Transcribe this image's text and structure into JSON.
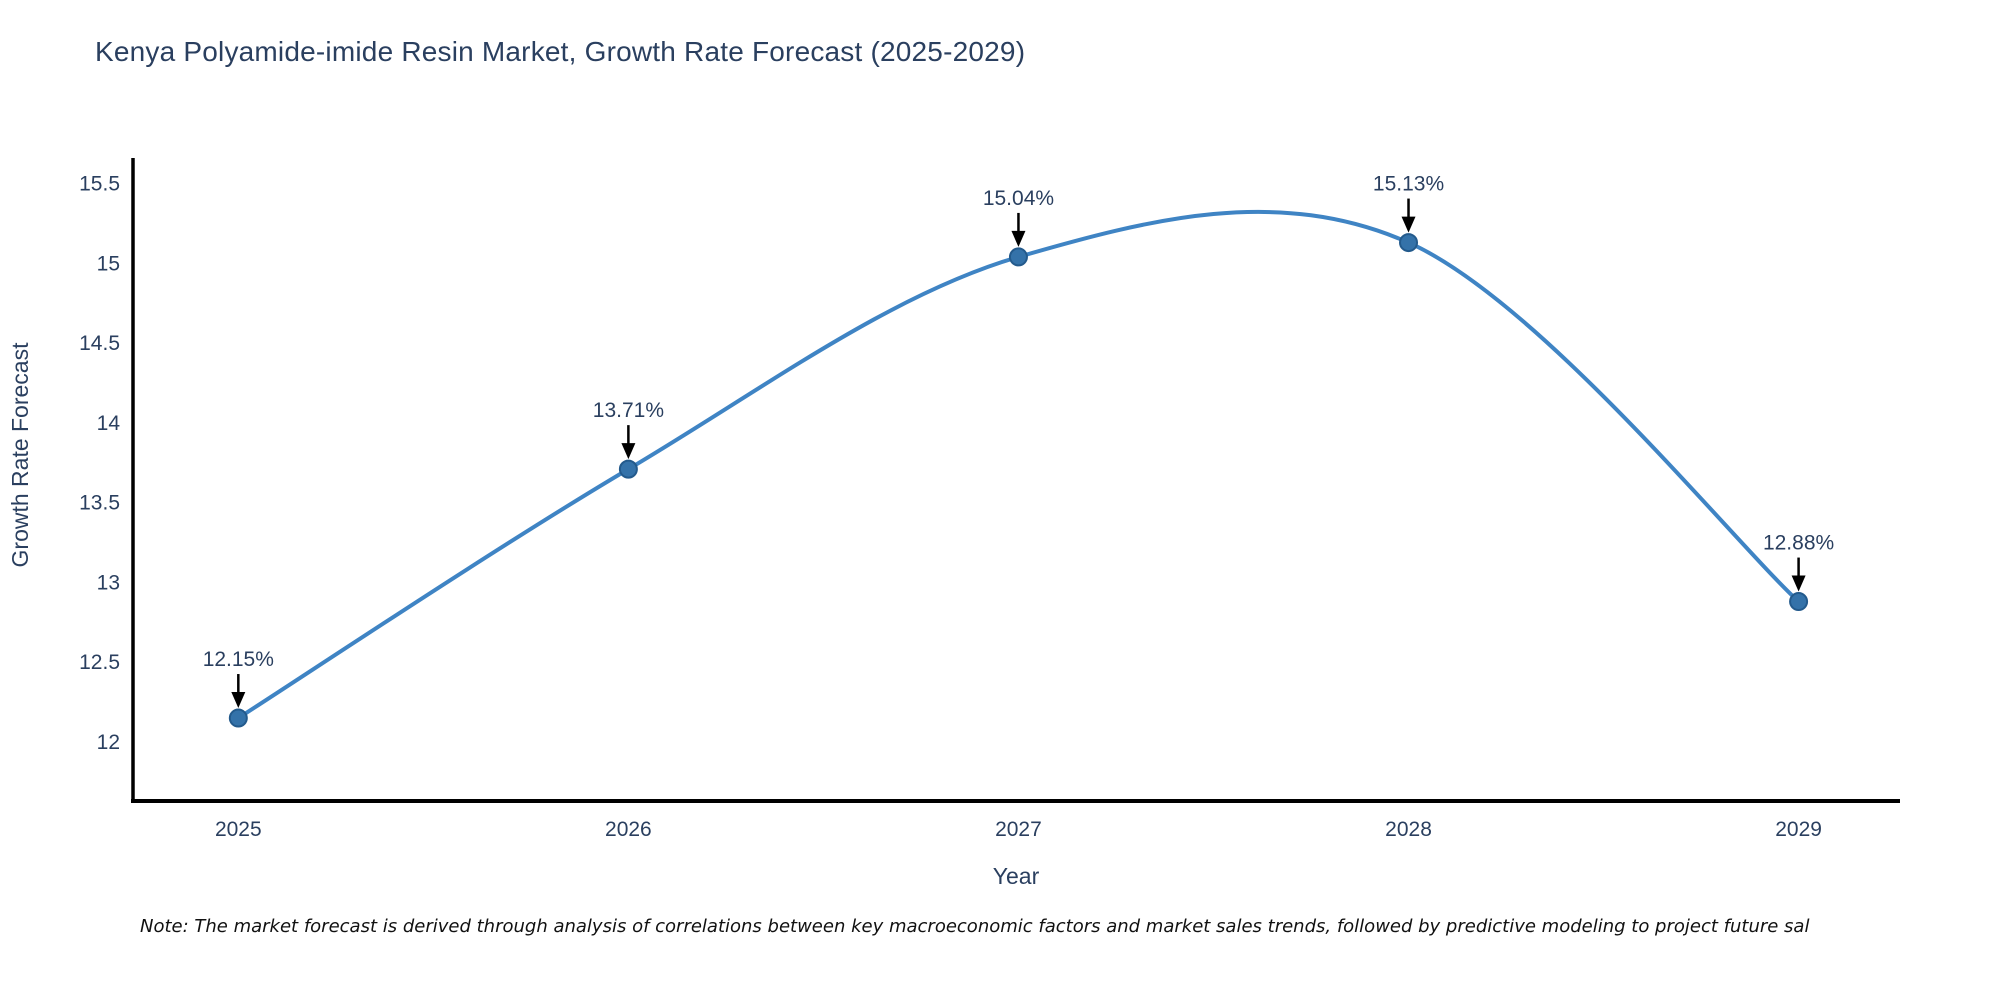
{
  "title": "Kenya Polyamide-imide Resin Market, Growth Rate Forecast (2025-2029)",
  "note": "Note: The market forecast is derived through analysis of correlations between key macroeconomic factors and market sales trends, followed by predictive modeling to project future sal",
  "chart_data": {
    "type": "line",
    "curve": "spline",
    "title": "Kenya Polyamide-imide Resin Market, Growth Rate Forecast (2025-2029)",
    "xlabel": "Year",
    "ylabel": "Growth Rate Forecast",
    "x": [
      2025,
      2026,
      2027,
      2028,
      2029
    ],
    "series": [
      {
        "name": "Growth Rate Forecast",
        "values": [
          12.15,
          13.71,
          15.04,
          15.13,
          12.88
        ]
      }
    ],
    "point_labels": [
      "12.15%",
      "13.71%",
      "15.04%",
      "15.13%",
      "12.88%"
    ],
    "x_ticks": [
      "2025",
      "2026",
      "2027",
      "2028",
      "2029"
    ],
    "y_ticks": [
      12,
      12.5,
      13,
      13.5,
      14,
      14.5,
      15,
      15.5
    ],
    "xlim": [
      2024.73,
      2029.26
    ],
    "ylim": [
      11.63,
      15.66
    ],
    "grid": false,
    "legend": "none",
    "colors": {
      "line": "#3f84c4",
      "marker_fill": "#3472a9",
      "marker_edge": "#235a8c",
      "annotation_arrow": "#000000",
      "axis_line": "#000000",
      "text": "#2a3f5f",
      "background": "#ffffff"
    }
  }
}
